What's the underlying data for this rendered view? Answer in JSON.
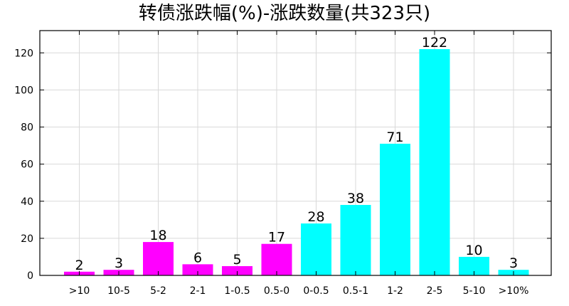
{
  "chart_data": {
    "type": "bar",
    "title": "转债涨跌幅(%)-涨跌数量(共323只)",
    "categories": [
      ">10",
      "10-5",
      "5-2",
      "2-1",
      "1-0.5",
      "0.5-0",
      "0-0.5",
      "0.5-1",
      "1-2",
      "2-5",
      "5-10",
      ">10%"
    ],
    "values": [
      2,
      3,
      18,
      6,
      5,
      17,
      28,
      38,
      71,
      122,
      10,
      3
    ],
    "colors": [
      "#ff00ff",
      "#ff00ff",
      "#ff00ff",
      "#ff00ff",
      "#ff00ff",
      "#ff00ff",
      "#00ffff",
      "#00ffff",
      "#00ffff",
      "#00ffff",
      "#00ffff",
      "#00ffff"
    ],
    "ylim": [
      0,
      132
    ],
    "yticks": [
      0,
      20,
      40,
      60,
      80,
      100,
      120
    ],
    "grid": true,
    "xlabel": "",
    "ylabel": ""
  }
}
